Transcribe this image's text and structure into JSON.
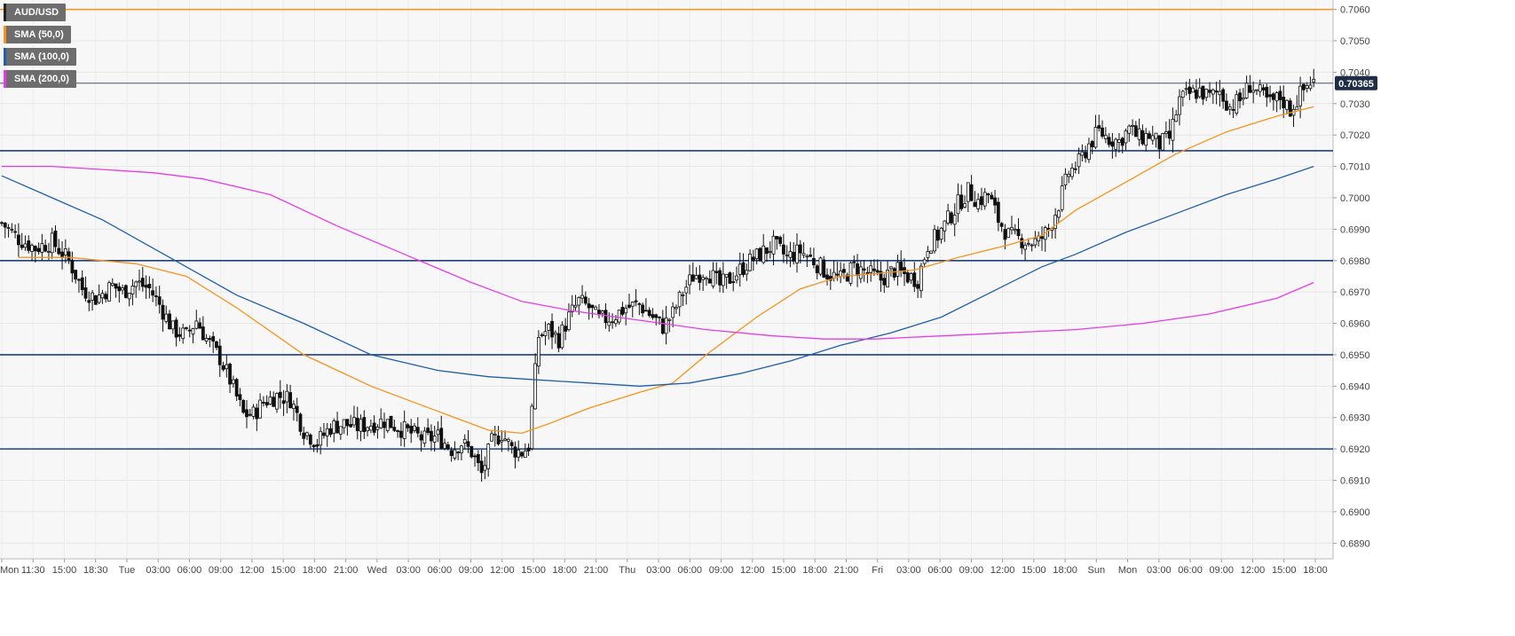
{
  "legend": [
    {
      "label": "AUD/USD",
      "color": "#222222"
    },
    {
      "label": "SMA (50,0)",
      "color": "#f7931a"
    },
    {
      "label": "SMA (100,0)",
      "color": "#1f5fa8"
    },
    {
      "label": "SMA (200,0)",
      "color": "#e83be8"
    }
  ],
  "last_price_label": "0.70365",
  "chart_data": {
    "type": "candlestick",
    "symbol": "AUD/USD",
    "ylim": [
      0.6885,
      0.7063
    ],
    "y_ticks": [
      "0.6890",
      "0.6900",
      "0.6910",
      "0.6920",
      "0.6930",
      "0.6940",
      "0.6950",
      "0.6960",
      "0.6970",
      "0.6980",
      "0.6990",
      "0.7000",
      "0.7010",
      "0.7020",
      "0.7030",
      "0.7040",
      "0.7050",
      "0.7060"
    ],
    "x_ticks": [
      "Mon",
      "11:30",
      "15:00",
      "18:30",
      "Tue",
      "03:00",
      "06:00",
      "09:00",
      "12:00",
      "15:00",
      "18:00",
      "21:00",
      "Wed",
      "03:00",
      "06:00",
      "09:00",
      "12:00",
      "15:00",
      "18:00",
      "21:00",
      "Thu",
      "03:00",
      "06:00",
      "09:00",
      "12:00",
      "15:00",
      "18:00",
      "21:00",
      "Fri",
      "03:00",
      "06:00",
      "09:00",
      "12:00",
      "15:00",
      "18:00",
      "Sun",
      "Mon",
      "03:00",
      "06:00",
      "09:00",
      "12:00",
      "15:00",
      "18:00"
    ],
    "horizontal_levels": [
      {
        "value": 0.706,
        "color": "#f7931a"
      },
      {
        "value": 0.7015,
        "color": "#1a3f8f"
      },
      {
        "value": 0.698,
        "color": "#1a3f8f"
      },
      {
        "value": 0.695,
        "color": "#1a3f8f"
      },
      {
        "value": 0.692,
        "color": "#1a3f8f"
      }
    ],
    "last_price": 0.70365,
    "close_path": [
      [
        0,
        0.6992
      ],
      [
        5,
        0.6987
      ],
      [
        10,
        0.6984
      ],
      [
        15,
        0.6986
      ],
      [
        20,
        0.698
      ],
      [
        24,
        0.6971
      ],
      [
        28,
        0.6968
      ],
      [
        33,
        0.6972
      ],
      [
        36,
        0.697
      ],
      [
        40,
        0.6973
      ],
      [
        44,
        0.6971
      ],
      [
        47,
        0.6966
      ],
      [
        51,
        0.6958
      ],
      [
        55,
        0.6956
      ],
      [
        58,
        0.6961
      ],
      [
        61,
        0.6955
      ],
      [
        65,
        0.6949
      ],
      [
        68,
        0.6942
      ],
      [
        72,
        0.6931
      ],
      [
        75,
        0.6931
      ],
      [
        78,
        0.6935
      ],
      [
        82,
        0.6937
      ],
      [
        86,
        0.6936
      ],
      [
        90,
        0.6926
      ],
      [
        94,
        0.6922
      ],
      [
        98,
        0.6927
      ],
      [
        102,
        0.6928
      ],
      [
        106,
        0.6927
      ],
      [
        110,
        0.6928
      ],
      [
        114,
        0.6929
      ],
      [
        118,
        0.6927
      ],
      [
        122,
        0.6925
      ],
      [
        126,
        0.6923
      ],
      [
        130,
        0.6924
      ],
      [
        134,
        0.692
      ],
      [
        137,
        0.6922
      ],
      [
        140,
        0.6919
      ],
      [
        143,
        0.6912
      ],
      [
        146,
        0.6922
      ],
      [
        149,
        0.6925
      ],
      [
        152,
        0.692
      ],
      [
        155,
        0.6919
      ],
      [
        157,
        0.6921
      ],
      [
        160,
        0.6956
      ],
      [
        163,
        0.6958
      ],
      [
        166,
        0.6955
      ],
      [
        169,
        0.6962
      ],
      [
        172,
        0.6967
      ],
      [
        175,
        0.6965
      ],
      [
        178,
        0.6961
      ],
      [
        182,
        0.6962
      ],
      [
        186,
        0.6965
      ],
      [
        190,
        0.6966
      ],
      [
        194,
        0.6962
      ],
      [
        197,
        0.6959
      ],
      [
        200,
        0.6963
      ],
      [
        203,
        0.697
      ],
      [
        206,
        0.6975
      ],
      [
        210,
        0.6977
      ],
      [
        214,
        0.6972
      ],
      [
        218,
        0.6975
      ],
      [
        222,
        0.6979
      ],
      [
        226,
        0.6982
      ],
      [
        230,
        0.6985
      ],
      [
        234,
        0.6981
      ],
      [
        238,
        0.6983
      ],
      [
        242,
        0.698
      ],
      [
        246,
        0.6976
      ],
      [
        250,
        0.6974
      ],
      [
        254,
        0.6978
      ],
      [
        258,
        0.6976
      ],
      [
        262,
        0.6974
      ],
      [
        266,
        0.6977
      ],
      [
        270,
        0.6975
      ],
      [
        273,
        0.6974
      ],
      [
        276,
        0.6985
      ],
      [
        279,
        0.6988
      ],
      [
        282,
        0.6993
      ],
      [
        285,
        0.6998
      ],
      [
        288,
        0.7002
      ],
      [
        291,
        0.6999
      ],
      [
        294,
        0.7001
      ],
      [
        297,
        0.6993
      ],
      [
        300,
        0.6988
      ],
      [
        303,
        0.6987
      ],
      [
        306,
        0.6986
      ],
      [
        309,
        0.6986
      ],
      [
        312,
        0.699
      ],
      [
        315,
        0.6998
      ],
      [
        318,
        0.7008
      ],
      [
        321,
        0.7011
      ],
      [
        324,
        0.7017
      ],
      [
        327,
        0.7021
      ],
      [
        330,
        0.7019
      ],
      [
        333,
        0.7018
      ],
      [
        336,
        0.7022
      ],
      [
        339,
        0.7019
      ],
      [
        342,
        0.702
      ],
      [
        345,
        0.7017
      ],
      [
        348,
        0.7019
      ],
      [
        351,
        0.7031
      ],
      [
        354,
        0.7033
      ],
      [
        357,
        0.7034
      ],
      [
        360,
        0.7032
      ],
      [
        363,
        0.7034
      ],
      [
        366,
        0.7029
      ],
      [
        369,
        0.7031
      ],
      [
        372,
        0.7036
      ],
      [
        375,
        0.7033
      ],
      [
        378,
        0.703
      ],
      [
        381,
        0.7032
      ],
      [
        384,
        0.7028
      ],
      [
        387,
        0.7033
      ],
      [
        390,
        0.7037
      ]
    ],
    "series": [
      {
        "name": "SMA (50,0)",
        "color": "#f7931a",
        "points": [
          [
            5,
            0.6981
          ],
          [
            20,
            0.6981
          ],
          [
            40,
            0.6979
          ],
          [
            55,
            0.6975
          ],
          [
            70,
            0.6965
          ],
          [
            90,
            0.695
          ],
          [
            110,
            0.694
          ],
          [
            130,
            0.6932
          ],
          [
            145,
            0.6926
          ],
          [
            155,
            0.6925
          ],
          [
            163,
            0.6928
          ],
          [
            175,
            0.6933
          ],
          [
            190,
            0.6938
          ],
          [
            200,
            0.6941
          ],
          [
            210,
            0.695
          ],
          [
            225,
            0.6962
          ],
          [
            238,
            0.6971
          ],
          [
            250,
            0.6975
          ],
          [
            262,
            0.6976
          ],
          [
            272,
            0.6977
          ],
          [
            285,
            0.6981
          ],
          [
            300,
            0.6985
          ],
          [
            310,
            0.6988
          ],
          [
            320,
            0.6996
          ],
          [
            335,
            0.7005
          ],
          [
            350,
            0.7014
          ],
          [
            365,
            0.7021
          ],
          [
            380,
            0.7026
          ],
          [
            391,
            0.7029
          ]
        ]
      },
      {
        "name": "SMA (100,0)",
        "color": "#1f5fa8",
        "points": [
          [
            0,
            0.7007
          ],
          [
            15,
            0.7
          ],
          [
            30,
            0.6993
          ],
          [
            50,
            0.6981
          ],
          [
            70,
            0.6969
          ],
          [
            90,
            0.696
          ],
          [
            110,
            0.695
          ],
          [
            130,
            0.6945
          ],
          [
            145,
            0.6943
          ],
          [
            160,
            0.6942
          ],
          [
            175,
            0.6941
          ],
          [
            190,
            0.694
          ],
          [
            205,
            0.6941
          ],
          [
            220,
            0.6944
          ],
          [
            235,
            0.6948
          ],
          [
            250,
            0.6953
          ],
          [
            265,
            0.6957
          ],
          [
            280,
            0.6962
          ],
          [
            295,
            0.697
          ],
          [
            310,
            0.6978
          ],
          [
            320,
            0.6982
          ],
          [
            335,
            0.6989
          ],
          [
            350,
            0.6995
          ],
          [
            365,
            0.7001
          ],
          [
            380,
            0.7006
          ],
          [
            391,
            0.701
          ]
        ]
      },
      {
        "name": "SMA (200,0)",
        "color": "#e83be8",
        "points": [
          [
            0,
            0.701
          ],
          [
            15,
            0.701
          ],
          [
            30,
            0.7009
          ],
          [
            45,
            0.7008
          ],
          [
            60,
            0.7006
          ],
          [
            80,
            0.7001
          ],
          [
            100,
            0.6991
          ],
          [
            120,
            0.6982
          ],
          [
            140,
            0.6973
          ],
          [
            155,
            0.6967
          ],
          [
            170,
            0.6964
          ],
          [
            190,
            0.6961
          ],
          [
            210,
            0.6958
          ],
          [
            230,
            0.6956
          ],
          [
            245,
            0.6955
          ],
          [
            260,
            0.6955
          ],
          [
            280,
            0.6956
          ],
          [
            300,
            0.6957
          ],
          [
            320,
            0.6958
          ],
          [
            340,
            0.696
          ],
          [
            360,
            0.6963
          ],
          [
            380,
            0.6968
          ],
          [
            391,
            0.6973
          ]
        ]
      }
    ]
  }
}
